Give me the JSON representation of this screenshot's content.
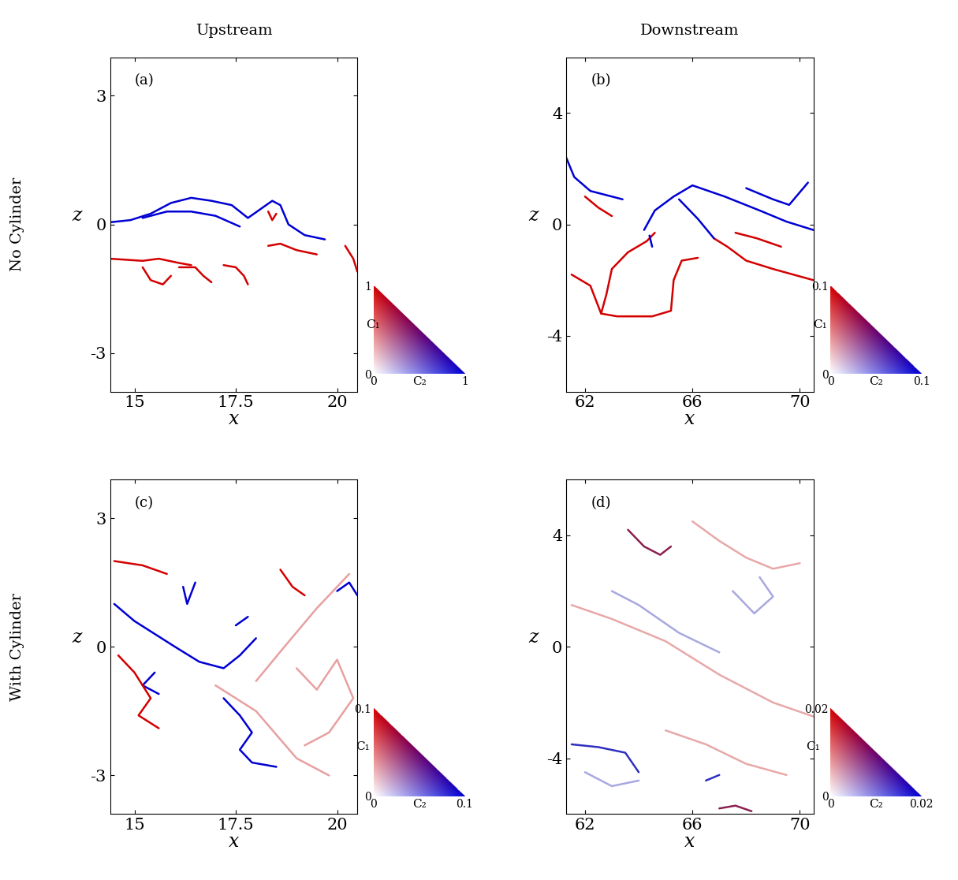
{
  "column_titles": [
    "Upstream",
    "Downstream"
  ],
  "row_titles": [
    "No Cylinder",
    "With Cylinder"
  ],
  "chart_data": [
    {
      "type": "line",
      "title": "(a)",
      "xlabel": "x",
      "ylabel": "z",
      "xlim": [
        14.4,
        20.5
      ],
      "ylim": [
        -3.9,
        3.9
      ],
      "xticks": [
        15,
        17.5,
        20
      ],
      "yticks": [
        -3,
        0,
        3
      ],
      "colorbar": {
        "xlabel": "C₂",
        "ylabel": "C₁",
        "range": [
          0,
          1
        ],
        "ticks": [
          0,
          1
        ],
        "colors": [
          "#d40000",
          "#0000d4"
        ]
      },
      "series": [
        {
          "color": "#0000d4",
          "paths": [
            {
              "x": [
                14.4,
                14.9,
                15.4,
                15.9,
                16.4,
                16.9,
                17.4,
                17.8,
                18.1,
                18.4,
                18.6,
                18.8,
                19.2,
                19.7
              ],
              "y": [
                0.05,
                0.1,
                0.25,
                0.5,
                0.62,
                0.55,
                0.45,
                0.15,
                0.35,
                0.55,
                0.45,
                0.0,
                -0.25,
                -0.35
              ]
            },
            {
              "x": [
                15.2,
                15.8,
                16.4,
                17.0,
                17.6
              ],
              "y": [
                0.15,
                0.3,
                0.3,
                0.2,
                -0.05
              ]
            }
          ]
        },
        {
          "color": "#d40000",
          "paths": [
            {
              "x": [
                14.4,
                15.2,
                15.6,
                16.1,
                16.4
              ],
              "y": [
                -0.8,
                -0.85,
                -0.8,
                -0.9,
                -0.95
              ]
            },
            {
              "x": [
                15.2,
                15.4,
                15.7,
                15.9
              ],
              "y": [
                -1.0,
                -1.3,
                -1.4,
                -1.2
              ]
            },
            {
              "x": [
                16.1,
                16.5,
                16.7,
                16.9
              ],
              "y": [
                -1.0,
                -1.0,
                -1.2,
                -1.35
              ]
            },
            {
              "x": [
                17.2,
                17.5,
                17.7,
                17.8
              ],
              "y": [
                -0.95,
                -1.0,
                -1.2,
                -1.4
              ]
            },
            {
              "x": [
                18.3,
                18.4,
                18.5
              ],
              "y": [
                0.3,
                0.1,
                0.25
              ]
            },
            {
              "x": [
                18.3,
                18.6,
                19.0,
                19.5
              ],
              "y": [
                -0.5,
                -0.45,
                -0.6,
                -0.7
              ]
            },
            {
              "x": [
                20.2,
                20.4,
                20.5
              ],
              "y": [
                -0.5,
                -0.8,
                -1.1
              ]
            }
          ]
        }
      ]
    },
    {
      "type": "line",
      "title": "(b)",
      "xlabel": "x",
      "ylabel": "z",
      "xlim": [
        61.3,
        70.5
      ],
      "ylim": [
        -6,
        6
      ],
      "xticks": [
        62,
        66,
        70
      ],
      "yticks": [
        -4,
        0,
        4
      ],
      "colorbar": {
        "xlabel": "C₂",
        "ylabel": "C₁",
        "range": [
          0,
          0.1
        ],
        "ticks": [
          0,
          0.1
        ],
        "colors": [
          "#d40000",
          "#0000d4"
        ]
      },
      "series": [
        {
          "color": "#d40000",
          "paths": [
            {
              "x": [
                61.5,
                62.2,
                62.6,
                63.2,
                64.5,
                65.2,
                65.3,
                65.6,
                66.2
              ],
              "y": [
                -1.8,
                -2.2,
                -3.2,
                -3.3,
                -3.3,
                -3.1,
                -2.0,
                -1.3,
                -1.2
              ]
            },
            {
              "x": [
                62.6,
                62.8,
                63.0,
                63.6,
                64.3,
                64.6
              ],
              "y": [
                -3.2,
                -2.5,
                -1.6,
                -1.0,
                -0.6,
                -0.3
              ]
            },
            {
              "x": [
                66.8,
                67.3,
                68.0,
                69.0,
                70.5
              ],
              "y": [
                -0.5,
                -0.8,
                -1.3,
                -1.6,
                -2.0
              ]
            },
            {
              "x": [
                62.0,
                62.5,
                63.0
              ],
              "y": [
                1.0,
                0.6,
                0.3
              ]
            },
            {
              "x": [
                67.6,
                68.4,
                69.3
              ],
              "y": [
                -0.3,
                -0.5,
                -0.8
              ]
            }
          ]
        },
        {
          "color": "#0000d4",
          "paths": [
            {
              "x": [
                61.3,
                61.6,
                62.2,
                63.4
              ],
              "y": [
                2.4,
                1.7,
                1.2,
                0.9
              ]
            },
            {
              "x": [
                64.2,
                64.6,
                65.3,
                66.0,
                67.2,
                68.5,
                69.5,
                70.5
              ],
              "y": [
                -0.2,
                0.5,
                1.0,
                1.4,
                1.0,
                0.5,
                0.1,
                -0.2
              ]
            },
            {
              "x": [
                65.5,
                66.2,
                66.8
              ],
              "y": [
                0.9,
                0.2,
                -0.5
              ]
            },
            {
              "x": [
                68.0,
                69.0,
                69.6,
                70.3
              ],
              "y": [
                1.3,
                0.9,
                0.7,
                1.5
              ]
            },
            {
              "x": [
                64.4,
                64.5
              ],
              "y": [
                -0.4,
                -0.8
              ]
            }
          ]
        }
      ]
    },
    {
      "type": "line",
      "title": "(c)",
      "xlabel": "x",
      "ylabel": "z",
      "xlim": [
        14.4,
        20.5
      ],
      "ylim": [
        -3.9,
        3.9
      ],
      "xticks": [
        15,
        17.5,
        20
      ],
      "yticks": [
        -3,
        0,
        3
      ],
      "colorbar": {
        "xlabel": "C₂",
        "ylabel": "C₁",
        "range": [
          0,
          0.1
        ],
        "ticks": [
          0,
          0.1
        ],
        "colors": [
          "#d40000",
          "#0000d4"
        ]
      },
      "series": [
        {
          "color": "#0000d4",
          "paths": [
            {
              "x": [
                14.5,
                15.0,
                15.5,
                16.0,
                16.6,
                17.2,
                17.6,
                18.0
              ],
              "y": [
                1.0,
                0.6,
                0.3,
                0.0,
                -0.35,
                -0.5,
                -0.2,
                0.2
              ]
            },
            {
              "x": [
                17.2,
                17.6,
                17.9,
                17.6,
                17.9,
                18.5
              ],
              "y": [
                -1.2,
                -1.6,
                -2.0,
                -2.4,
                -2.7,
                -2.8
              ]
            },
            {
              "x": [
                16.2,
                16.3,
                16.5
              ],
              "y": [
                1.4,
                1.0,
                1.5
              ]
            },
            {
              "x": [
                20.0,
                20.3,
                20.5
              ],
              "y": [
                1.3,
                1.5,
                1.2
              ]
            },
            {
              "x": [
                15.5,
                15.2,
                15.6
              ],
              "y": [
                -0.6,
                -0.9,
                -1.1
              ]
            },
            {
              "x": [
                17.5,
                17.8
              ],
              "y": [
                0.5,
                0.7
              ]
            }
          ]
        },
        {
          "color": "#d40000",
          "paths": [
            {
              "x": [
                14.5,
                15.2,
                15.8
              ],
              "y": [
                2.0,
                1.9,
                1.7
              ]
            },
            {
              "x": [
                14.6,
                15.0,
                15.4,
                15.1,
                15.6
              ],
              "y": [
                -0.2,
                -0.6,
                -1.2,
                -1.6,
                -1.9
              ]
            },
            {
              "x": [
                18.6,
                18.9,
                19.2
              ],
              "y": [
                1.8,
                1.4,
                1.2
              ]
            }
          ]
        },
        {
          "color": "#e8a0a0",
          "paths": [
            {
              "x": [
                19.0,
                19.5,
                20.0,
                20.4,
                19.8,
                19.2
              ],
              "y": [
                -0.5,
                -1.0,
                -0.3,
                -1.2,
                -2.0,
                -2.3
              ]
            },
            {
              "x": [
                18.0,
                18.7,
                19.5,
                20.3
              ],
              "y": [
                -0.8,
                0.0,
                0.9,
                1.7
              ]
            },
            {
              "x": [
                17.0,
                18.0,
                19.0,
                19.8
              ],
              "y": [
                -0.9,
                -1.5,
                -2.6,
                -3.0
              ]
            }
          ]
        }
      ]
    },
    {
      "type": "line",
      "title": "(d)",
      "xlabel": "x",
      "ylabel": "z",
      "xlim": [
        61.3,
        70.5
      ],
      "ylim": [
        -6,
        6
      ],
      "xticks": [
        62,
        66,
        70
      ],
      "yticks": [
        -4,
        0,
        4
      ],
      "colorbar": {
        "xlabel": "C₂",
        "ylabel": "C₁",
        "range": [
          0,
          0.02
        ],
        "ticks": [
          0,
          0.02
        ],
        "colors": [
          "#d40000",
          "#0000d4"
        ]
      },
      "series": [
        {
          "color": "#8a2050",
          "paths": [
            {
              "x": [
                63.6,
                64.2,
                64.8,
                65.2
              ],
              "y": [
                4.2,
                3.6,
                3.3,
                3.6
              ]
            },
            {
              "x": [
                67.0,
                67.6,
                68.2
              ],
              "y": [
                -5.8,
                -5.7,
                -5.9
              ]
            }
          ]
        },
        {
          "color": "#3030c0",
          "paths": [
            {
              "x": [
                61.5,
                62.5,
                63.5,
                64.0
              ],
              "y": [
                -3.5,
                -3.6,
                -3.8,
                -4.5
              ]
            },
            {
              "x": [
                66.5,
                67.0
              ],
              "y": [
                -4.8,
                -4.6
              ]
            }
          ]
        },
        {
          "color": "#a8a8e0",
          "paths": [
            {
              "x": [
                63.0,
                64.0,
                65.5,
                67.0
              ],
              "y": [
                2.0,
                1.5,
                0.5,
                -0.2
              ]
            },
            {
              "x": [
                67.5,
                68.3,
                69.0,
                68.5
              ],
              "y": [
                2.0,
                1.2,
                1.8,
                2.5
              ]
            },
            {
              "x": [
                62.0,
                63.0,
                64.0
              ],
              "y": [
                -4.5,
                -5.0,
                -4.8
              ]
            }
          ]
        },
        {
          "color": "#e8a8a8",
          "paths": [
            {
              "x": [
                61.5,
                63.0,
                65.0,
                67.0,
                69.0,
                70.5
              ],
              "y": [
                1.5,
                1.0,
                0.2,
                -1.0,
                -2.0,
                -2.5
              ]
            },
            {
              "x": [
                66.0,
                67.0,
                68.0,
                69.0,
                70.0
              ],
              "y": [
                4.5,
                3.8,
                3.2,
                2.8,
                3.0
              ]
            },
            {
              "x": [
                65.0,
                66.5,
                68.0,
                69.5
              ],
              "y": [
                -3.0,
                -3.5,
                -4.2,
                -4.6
              ]
            }
          ]
        }
      ]
    }
  ]
}
